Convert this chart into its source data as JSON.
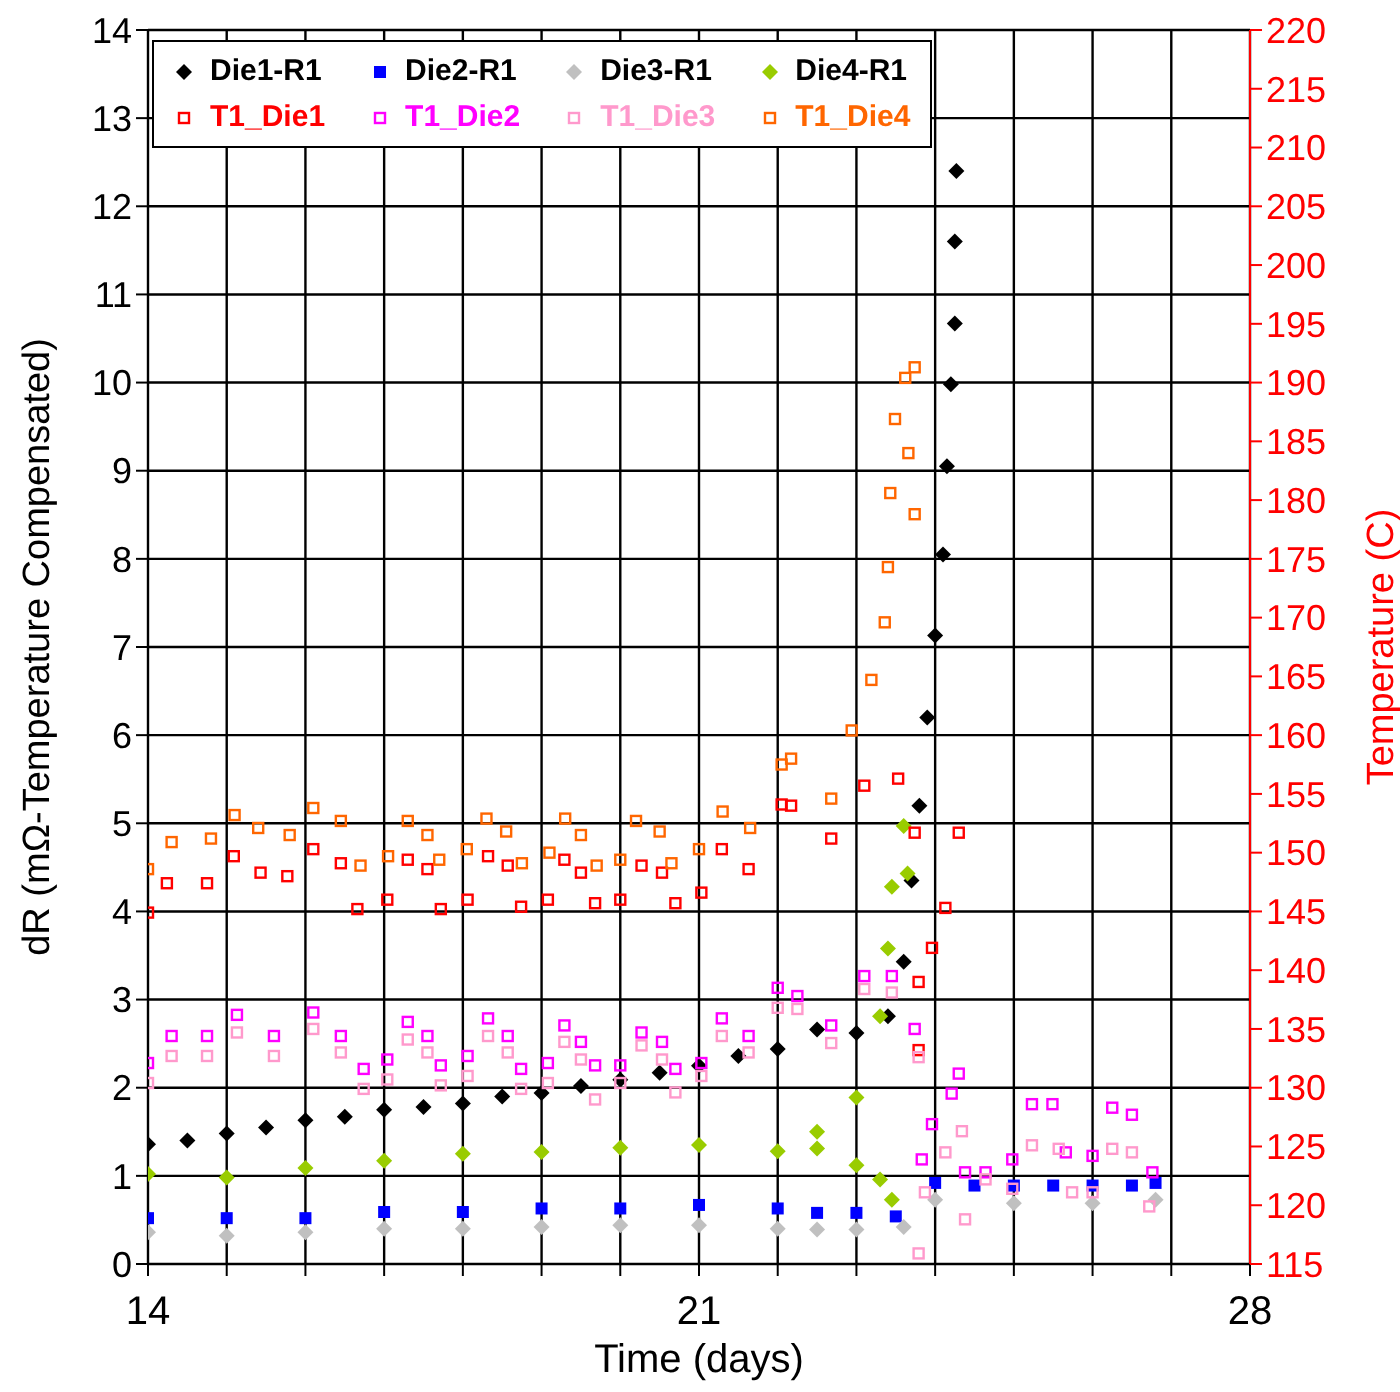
{
  "chart_data": {
    "type": "scatter",
    "xlabel": "Time (days)",
    "ylabel": "dR (mΩ-Temperature Compensated)",
    "y2label": "Temperature (C)",
    "xlim": [
      14,
      28
    ],
    "xticks": [
      14,
      {
        "value": 15,
        "label": null
      },
      {
        "value": 16,
        "label": null
      },
      {
        "value": 17,
        "label": null
      },
      {
        "value": 18,
        "label": null
      },
      {
        "value": 19,
        "label": null
      },
      {
        "value": 20,
        "label": null
      },
      21,
      {
        "value": 22,
        "label": null
      },
      {
        "value": 23,
        "label": null
      },
      {
        "value": 24,
        "label": null
      },
      {
        "value": 25,
        "label": null
      },
      {
        "value": 26,
        "label": null
      },
      {
        "value": 27,
        "label": null
      },
      28
    ],
    "ylim": [
      0,
      14
    ],
    "yticks": [
      0,
      1,
      2,
      3,
      4,
      5,
      6,
      7,
      8,
      9,
      10,
      11,
      12,
      13,
      14
    ],
    "y2lim": [
      115,
      220
    ],
    "y2ticks": [
      115,
      120,
      125,
      130,
      135,
      140,
      145,
      150,
      155,
      160,
      165,
      170,
      175,
      180,
      185,
      190,
      195,
      200,
      205,
      210,
      215,
      220
    ],
    "grid": true,
    "legend": "top left",
    "series": [
      {
        "name": "Die1-R1",
        "color": "#000000",
        "marker": "diamond",
        "x": [
          14,
          14.5,
          15,
          15.5,
          16,
          16.5,
          17,
          17.5,
          18,
          18.5,
          19,
          19.5,
          20,
          20.5,
          21,
          21.5,
          22,
          22.5,
          23,
          23.4,
          23.6,
          23.7,
          23.8,
          23.9,
          24,
          24.1,
          24.15,
          24.2,
          24.25,
          24.25,
          24.27
        ],
        "values": [
          1.36,
          1.4,
          1.48,
          1.55,
          1.63,
          1.67,
          1.75,
          1.78,
          1.82,
          1.9,
          1.94,
          2.02,
          2.09,
          2.17,
          2.25,
          2.36,
          2.44,
          2.66,
          2.62,
          2.81,
          3.43,
          4.35,
          5.2,
          6.2,
          7.13,
          8.05,
          9.05,
          9.98,
          10.67,
          11.6,
          12.4
        ]
      },
      {
        "name": "Die2-R1",
        "color": "#0000ff",
        "marker": "square",
        "x": [
          14,
          15,
          16,
          17,
          18,
          19,
          20,
          21,
          22,
          22.5,
          23,
          23.5,
          24,
          24.5,
          25,
          25.5,
          26,
          26.5,
          26.8
        ],
        "values": [
          0.52,
          0.52,
          0.52,
          0.59,
          0.59,
          0.63,
          0.63,
          0.67,
          0.63,
          0.58,
          0.58,
          0.54,
          0.92,
          0.89,
          0.89,
          0.89,
          0.89,
          0.89,
          0.92
        ]
      },
      {
        "name": "Die3-R1",
        "color": "#c0c0c0",
        "marker": "diamond",
        "x": [
          14,
          15,
          16,
          17,
          18,
          19,
          20,
          21,
          22,
          22.5,
          23,
          23.6,
          24,
          25,
          26,
          26.8
        ],
        "values": [
          0.36,
          0.32,
          0.36,
          0.4,
          0.4,
          0.42,
          0.44,
          0.44,
          0.4,
          0.39,
          0.39,
          0.42,
          0.73,
          0.69,
          0.69,
          0.73
        ]
      },
      {
        "name": "Die4-R1",
        "color": "#99cc00",
        "marker": "diamond",
        "x": [
          14,
          15,
          16,
          17,
          18,
          19,
          20,
          21,
          22,
          22.5,
          23,
          23.3,
          23.4,
          23.45,
          23.6,
          23.65,
          22.5,
          23,
          23.3,
          23.45
        ],
        "values": [
          1.02,
          0.98,
          1.09,
          1.17,
          1.25,
          1.27,
          1.32,
          1.35,
          1.28,
          1.5,
          1.89,
          2.81,
          3.58,
          4.28,
          4.97,
          4.43,
          1.31,
          1.12,
          0.96,
          0.73
        ]
      },
      {
        "name": "T1_Die1",
        "color": "#ff0000",
        "marker": "square",
        "axis": "y2",
        "x": [
          14,
          14.24,
          14.75,
          15.09,
          15.43,
          15.77,
          16.1,
          16.45,
          16.66,
          17.04,
          17.3,
          17.55,
          17.72,
          18.06,
          18.32,
          18.57,
          18.74,
          19.08,
          19.29,
          19.5,
          19.68,
          20,
          20.27,
          20.53,
          20.7,
          21.03,
          21.29,
          21.63,
          22.05,
          22.17,
          22.68,
          23.1,
          23.53,
          23.74,
          23.79,
          23.79,
          23.96,
          24.13,
          24.3
        ],
        "values": [
          144.9,
          147.4,
          147.4,
          149.7,
          148.3,
          148,
          150.3,
          149.1,
          145.2,
          146,
          149.4,
          148.6,
          145.2,
          146,
          149.7,
          148.9,
          145.4,
          146,
          149.4,
          148.3,
          145.7,
          146,
          148.9,
          148.3,
          145.7,
          146.6,
          150.3,
          148.6,
          154.1,
          154,
          151.2,
          155.7,
          156.3,
          151.7,
          139,
          133.2,
          141.9,
          145.3,
          151.7
        ]
      },
      {
        "name": "T1_Die2",
        "color": "#ff00ff",
        "marker": "square",
        "axis": "y2",
        "x": [
          14,
          14.3,
          14.75,
          15.13,
          15.6,
          16.1,
          16.45,
          16.74,
          17.04,
          17.3,
          17.55,
          17.72,
          18.06,
          18.32,
          18.57,
          18.74,
          19.08,
          19.29,
          19.5,
          19.68,
          20,
          20.27,
          20.53,
          20.7,
          21.03,
          21.29,
          21.63,
          22,
          22.25,
          22.68,
          23.1,
          23.45,
          23.74,
          23.83,
          23.96,
          24.21,
          24.3,
          24.38,
          24.64,
          24.98,
          25.23,
          25.49,
          25.66,
          26,
          26.25,
          26.5,
          26.76
        ],
        "values": [
          132.1,
          134.4,
          134.4,
          136.2,
          134.4,
          136.4,
          134.4,
          131.6,
          132.4,
          135.6,
          134.4,
          131.9,
          132.7,
          135.9,
          134.4,
          131.6,
          132.1,
          135.3,
          133.9,
          131.9,
          131.9,
          134.7,
          133.9,
          131.6,
          132.1,
          135.9,
          134.4,
          138.5,
          137.8,
          135.3,
          139.5,
          139.5,
          135,
          123.9,
          126.9,
          129.5,
          131.2,
          122.8,
          122.8,
          123.9,
          128.6,
          128.6,
          124.5,
          124.2,
          128.3,
          127.7,
          122.8
        ]
      },
      {
        "name": "T1_Die3",
        "color": "#ff99cc",
        "marker": "square",
        "axis": "y2",
        "x": [
          14,
          14.3,
          14.75,
          15.13,
          15.6,
          16.1,
          16.45,
          16.74,
          17.04,
          17.3,
          17.55,
          17.72,
          18.06,
          18.32,
          18.57,
          18.74,
          19.08,
          19.29,
          19.5,
          19.68,
          20,
          20.27,
          20.53,
          20.7,
          21.03,
          21.29,
          21.63,
          22,
          22.25,
          22.68,
          23.1,
          23.45,
          23.79,
          23.79,
          23.87,
          24.13,
          24.34,
          24.38,
          24.64,
          24.98,
          25.23,
          25.57,
          25.74,
          26,
          26.25,
          26.5,
          26.72
        ],
        "values": [
          130.4,
          132.7,
          132.7,
          134.7,
          132.7,
          135,
          133,
          129.9,
          130.7,
          134.1,
          133,
          130.2,
          131,
          134.4,
          133,
          129.9,
          130.4,
          133.9,
          132.4,
          129,
          130.4,
          133.6,
          132.4,
          129.6,
          131,
          134.4,
          133,
          136.8,
          136.7,
          133.8,
          138.4,
          138.1,
          132.6,
          115.9,
          121.1,
          124.5,
          126.3,
          118.8,
          122.2,
          121.4,
          125.1,
          124.8,
          121.1,
          121.1,
          124.8,
          124.5,
          119.9
        ]
      },
      {
        "name": "T1_Die4",
        "color": "#ff6600",
        "marker": "square",
        "axis": "y2",
        "x": [
          14,
          14.3,
          14.8,
          15.1,
          15.4,
          15.8,
          16.1,
          16.45,
          16.7,
          17.05,
          17.3,
          17.55,
          17.7,
          18.05,
          18.3,
          18.55,
          18.75,
          19.1,
          19.3,
          19.5,
          19.7,
          20,
          20.2,
          20.5,
          20.65,
          21,
          21.3,
          21.65,
          22.05,
          22.17,
          22.68,
          22.94,
          23.19,
          23.36,
          23.4,
          23.43,
          23.49,
          23.62,
          23.66,
          23.74,
          23.74
        ],
        "values": [
          148.6,
          150.9,
          151.2,
          153.2,
          152.1,
          151.5,
          153.8,
          152.7,
          148.9,
          149.7,
          152.7,
          151.5,
          149.4,
          150.3,
          152.9,
          151.8,
          149.1,
          150,
          152.9,
          151.5,
          148.9,
          149.4,
          152.7,
          151.8,
          149.1,
          150.3,
          153.5,
          152.1,
          157.5,
          158,
          154.6,
          160.4,
          164.7,
          169.6,
          174.3,
          180.6,
          186.9,
          190.4,
          184,
          178.8,
          191.3
        ]
      }
    ]
  }
}
